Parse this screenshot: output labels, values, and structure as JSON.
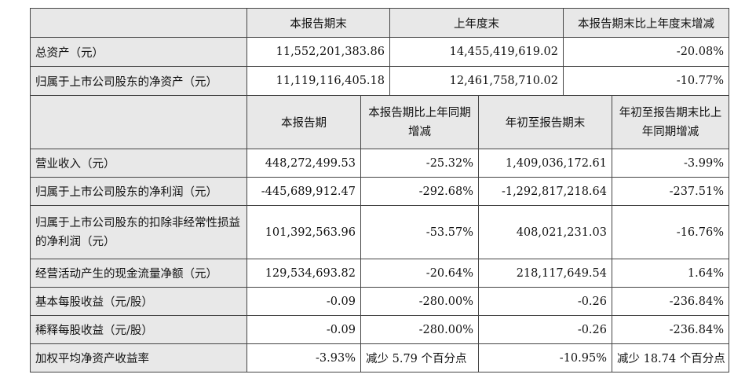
{
  "table1": {
    "headers": [
      "本报告期末",
      "上年度末",
      "本报告期末比上年度末增减"
    ],
    "rows": [
      {
        "label": "总资产（元）",
        "values": [
          "11,552,201,383.86",
          "14,455,419,619.02",
          "-20.08%"
        ]
      },
      {
        "label": "归属于上市公司股东的净资产（元）",
        "values": [
          "11,119,116,405.18",
          "12,461,758,710.02",
          "-10.77%"
        ]
      }
    ]
  },
  "table2": {
    "headers": [
      "本报告期",
      "本报告期比上年同期增减",
      "年初至报告期末",
      "年初至报告期末比上年同期增减"
    ],
    "rows": [
      {
        "label": "营业收入（元）",
        "values": [
          "448,272,499.53",
          "-25.32%",
          "1,409,036,172.61",
          "-3.99%"
        ]
      },
      {
        "label": "归属于上市公司股东的净利润（元）",
        "values": [
          "-445,689,912.47",
          "-292.68%",
          "-1,292,817,218.64",
          "-237.51%"
        ]
      },
      {
        "label": "归属于上市公司股东的扣除非经常性损益的净利润（元）",
        "values": [
          "101,392,563.96",
          "-53.57%",
          "408,021,231.03",
          "-16.76%"
        ]
      },
      {
        "label": "经营活动产生的现金流量净额（元）",
        "values": [
          "129,534,693.82",
          "-20.64%",
          "218,117,649.54",
          "1.64%"
        ]
      },
      {
        "label": "基本每股收益（元/股）",
        "values": [
          "-0.09",
          "-280.00%",
          "-0.26",
          "-236.84%"
        ]
      },
      {
        "label": "稀释每股收益（元/股）",
        "values": [
          "-0.09",
          "-280.00%",
          "-0.26",
          "-236.84%"
        ]
      },
      {
        "label": "加权平均净资产收益率",
        "values": [
          "-3.93%",
          "减少 5.79 个百分点",
          "-10.95%",
          "减少 18.74 个百分点"
        ]
      }
    ]
  }
}
